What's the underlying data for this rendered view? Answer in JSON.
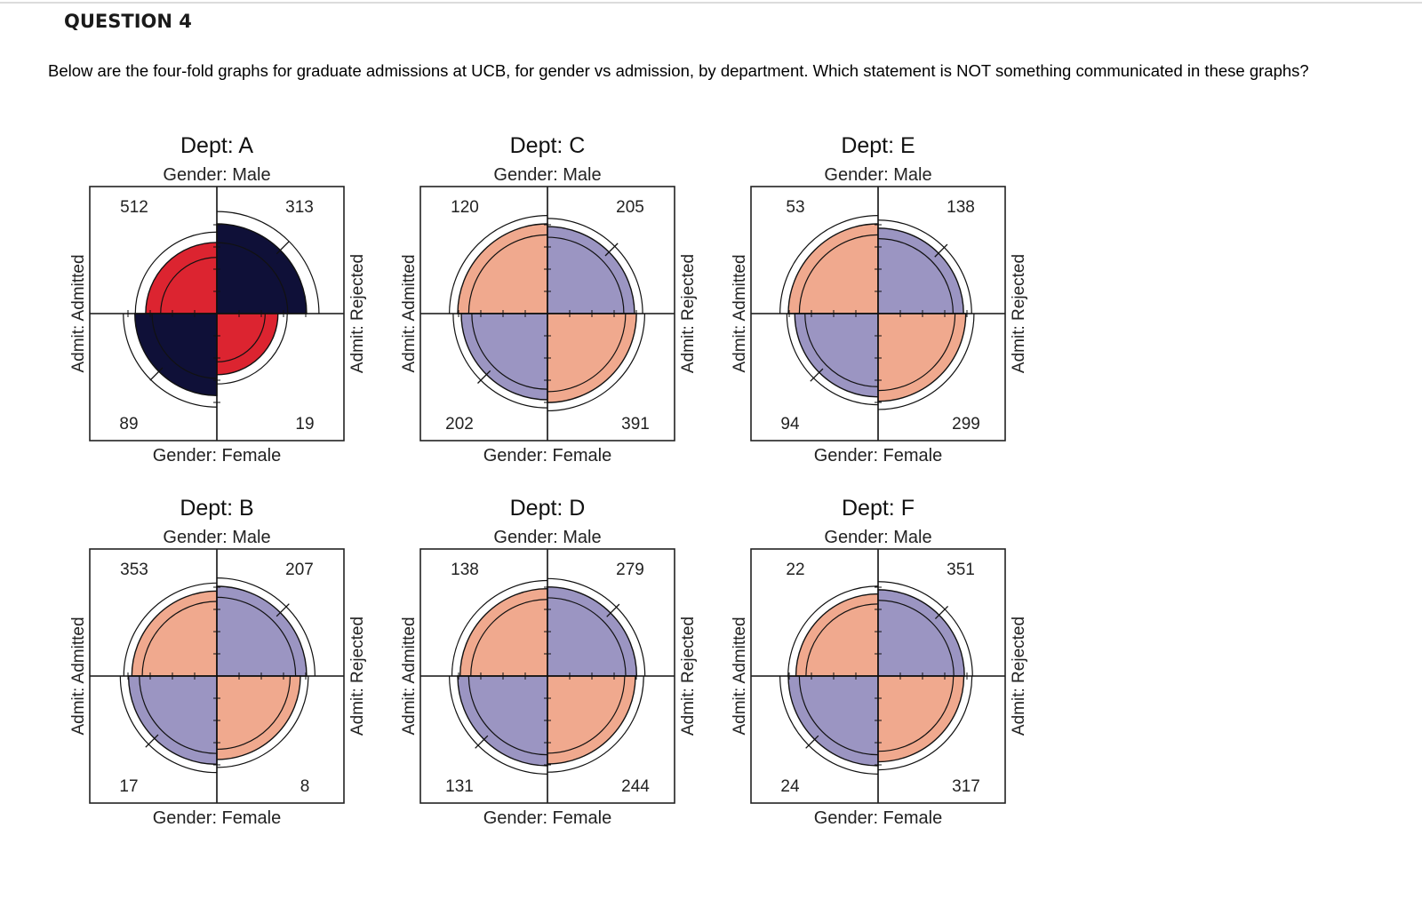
{
  "question": {
    "title": "QUESTION 4",
    "prompt": "Below are the four-fold graphs for graduate admissions at UCB, for gender vs admission, by department. Which statement is NOT something communicated in these graphs?"
  },
  "labels": {
    "gender_male": "Gender: Male",
    "gender_female": "Gender: Female",
    "admit_admitted": "Admit: Admitted",
    "admit_rejected": "Admit: Rejected"
  },
  "colors": {
    "sig_pos": "#dc2430",
    "sig_neg": "#0f1038",
    "ns_pos": "#f0a98e",
    "ns_neg": "#9b95c2"
  },
  "chart_data": [
    {
      "type": "fourfold",
      "title": "Dept: A",
      "significant": true,
      "cells": {
        "male_admitted": 512,
        "male_rejected": 313,
        "female_admitted": 89,
        "female_rejected": 19
      }
    },
    {
      "type": "fourfold",
      "title": "Dept: C",
      "significant": false,
      "cells": {
        "male_admitted": 120,
        "male_rejected": 205,
        "female_admitted": 202,
        "female_rejected": 391
      }
    },
    {
      "type": "fourfold",
      "title": "Dept: E",
      "significant": false,
      "cells": {
        "male_admitted": 53,
        "male_rejected": 138,
        "female_admitted": 94,
        "female_rejected": 299
      }
    },
    {
      "type": "fourfold",
      "title": "Dept: B",
      "significant": false,
      "cells": {
        "male_admitted": 353,
        "male_rejected": 207,
        "female_admitted": 17,
        "female_rejected": 8
      }
    },
    {
      "type": "fourfold",
      "title": "Dept: D",
      "significant": false,
      "cells": {
        "male_admitted": 138,
        "male_rejected": 279,
        "female_admitted": 131,
        "female_rejected": 244
      }
    },
    {
      "type": "fourfold",
      "title": "Dept: F",
      "significant": false,
      "cells": {
        "male_admitted": 22,
        "male_rejected": 351,
        "female_admitted": 24,
        "female_rejected": 317
      }
    }
  ]
}
